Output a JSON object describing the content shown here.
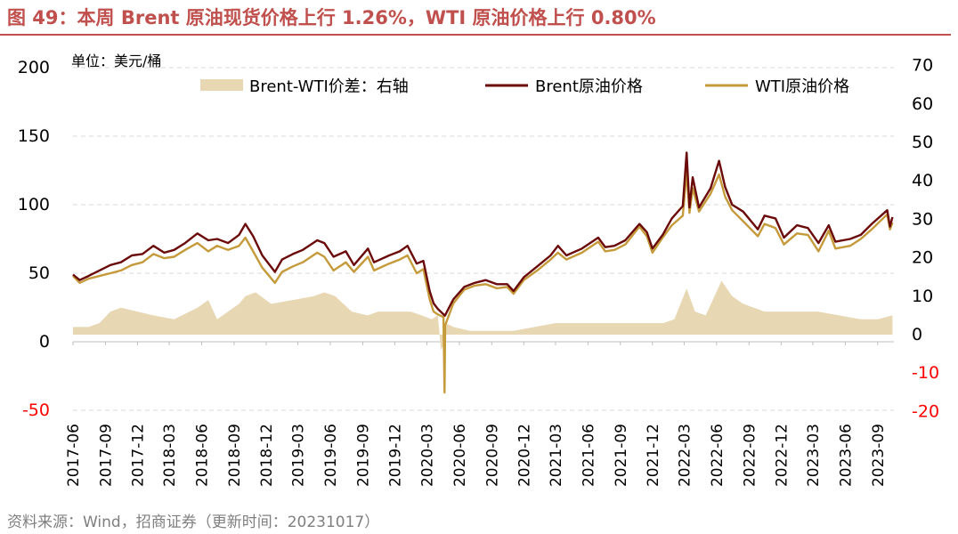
{
  "figure": {
    "title": "图 49：本周 Brent 原油现货价格上行 1.26%，WTI 原油价格上行 0.80%",
    "source": "资料来源：Wind，招商证券（更新时间：20231017）"
  },
  "colors": {
    "title": "#c0504d",
    "brent": "#6b0a0a",
    "wti": "#c49a3b",
    "spread": "#e8d7b3",
    "negative_tick": "#ff0000",
    "axis_text": "#000000",
    "grid": "#d9d9d9"
  },
  "chart_data": {
    "type": "line",
    "unit_label": "单位：美元/桶",
    "x_ticks": [
      "2017-06",
      "2017-09",
      "2017-12",
      "2018-03",
      "2018-06",
      "2018-09",
      "2018-12",
      "2019-03",
      "2019-06",
      "2019-09",
      "2019-12",
      "2020-03",
      "2020-06",
      "2020-09",
      "2020-12",
      "2021-03",
      "2021-06",
      "2021-09",
      "2021-12",
      "2022-03",
      "2022-06",
      "2022-09",
      "2022-12",
      "2023-03",
      "2023-06",
      "2023-09"
    ],
    "y_left": {
      "range": [
        -50,
        200
      ],
      "ticks": [
        -50,
        0,
        50,
        100,
        150,
        200
      ]
    },
    "y_right": {
      "range": [
        -20,
        70
      ],
      "ticks": [
        -20,
        -10,
        0,
        10,
        20,
        30,
        40,
        50,
        60,
        70
      ]
    },
    "grid": true,
    "legend": {
      "position": "top",
      "items": [
        "Brent-WTI价差：右轴",
        "Brent原油价格",
        "WTI原油价格"
      ]
    },
    "series": [
      {
        "name": "Brent原油价格",
        "kind": "line",
        "axis": "left",
        "points": [
          [
            "2017-06-01",
            49
          ],
          [
            "2017-06-20",
            45
          ],
          [
            "2017-07-15",
            48
          ],
          [
            "2017-08-15",
            52
          ],
          [
            "2017-09-15",
            56
          ],
          [
            "2017-10-15",
            58
          ],
          [
            "2017-11-15",
            63
          ],
          [
            "2017-12-15",
            64
          ],
          [
            "2018-01-15",
            70
          ],
          [
            "2018-02-15",
            65
          ],
          [
            "2018-03-15",
            67
          ],
          [
            "2018-04-15",
            72
          ],
          [
            "2018-05-20",
            79
          ],
          [
            "2018-06-20",
            74
          ],
          [
            "2018-07-15",
            75
          ],
          [
            "2018-08-15",
            72
          ],
          [
            "2018-09-15",
            78
          ],
          [
            "2018-10-03",
            86
          ],
          [
            "2018-10-25",
            77
          ],
          [
            "2018-11-20",
            63
          ],
          [
            "2018-12-26",
            51
          ],
          [
            "2019-01-15",
            60
          ],
          [
            "2019-02-15",
            64
          ],
          [
            "2019-03-15",
            67
          ],
          [
            "2019-04-25",
            74
          ],
          [
            "2019-05-15",
            72
          ],
          [
            "2019-06-10",
            62
          ],
          [
            "2019-07-15",
            66
          ],
          [
            "2019-08-07",
            56
          ],
          [
            "2019-09-16",
            68
          ],
          [
            "2019-10-03",
            58
          ],
          [
            "2019-11-15",
            63
          ],
          [
            "2019-12-15",
            66
          ],
          [
            "2020-01-06",
            70
          ],
          [
            "2020-02-01",
            57
          ],
          [
            "2020-02-20",
            59
          ],
          [
            "2020-03-09",
            37
          ],
          [
            "2020-03-20",
            28
          ],
          [
            "2020-04-01",
            24
          ],
          [
            "2020-04-21",
            19
          ],
          [
            "2020-05-15",
            31
          ],
          [
            "2020-06-15",
            40
          ],
          [
            "2020-07-15",
            43
          ],
          [
            "2020-08-15",
            45
          ],
          [
            "2020-09-15",
            42
          ],
          [
            "2020-10-15",
            42
          ],
          [
            "2020-11-02",
            37
          ],
          [
            "2020-12-01",
            47
          ],
          [
            "2021-01-08",
            55
          ],
          [
            "2021-02-15",
            63
          ],
          [
            "2021-03-08",
            70
          ],
          [
            "2021-04-01",
            63
          ],
          [
            "2021-05-15",
            68
          ],
          [
            "2021-06-30",
            76
          ],
          [
            "2021-07-20",
            69
          ],
          [
            "2021-08-15",
            70
          ],
          [
            "2021-09-15",
            74
          ],
          [
            "2021-10-25",
            86
          ],
          [
            "2021-11-15",
            80
          ],
          [
            "2021-12-01",
            68
          ],
          [
            "2021-12-30",
            78
          ],
          [
            "2022-01-25",
            90
          ],
          [
            "2022-02-25",
            99
          ],
          [
            "2022-03-08",
            138
          ],
          [
            "2022-03-16",
            98
          ],
          [
            "2022-03-25",
            120
          ],
          [
            "2022-04-12",
            98
          ],
          [
            "2022-05-15",
            112
          ],
          [
            "2022-06-08",
            132
          ],
          [
            "2022-06-25",
            113
          ],
          [
            "2022-07-15",
            100
          ],
          [
            "2022-08-15",
            95
          ],
          [
            "2022-09-26",
            82
          ],
          [
            "2022-10-15",
            92
          ],
          [
            "2022-11-15",
            90
          ],
          [
            "2022-12-09",
            76
          ],
          [
            "2023-01-15",
            85
          ],
          [
            "2023-02-15",
            83
          ],
          [
            "2023-03-17",
            72
          ],
          [
            "2023-04-15",
            85
          ],
          [
            "2023-05-04",
            73
          ],
          [
            "2023-06-15",
            75
          ],
          [
            "2023-07-15",
            78
          ],
          [
            "2023-08-15",
            86
          ],
          [
            "2023-09-28",
            96
          ],
          [
            "2023-10-06",
            84
          ],
          [
            "2023-10-13",
            91
          ]
        ]
      },
      {
        "name": "WTI原油价格",
        "kind": "line",
        "axis": "left",
        "points": [
          [
            "2017-06-01",
            48
          ],
          [
            "2017-06-20",
            43
          ],
          [
            "2017-07-15",
            46
          ],
          [
            "2017-08-15",
            48
          ],
          [
            "2017-09-15",
            50
          ],
          [
            "2017-10-15",
            52
          ],
          [
            "2017-11-15",
            56
          ],
          [
            "2017-12-15",
            58
          ],
          [
            "2018-01-15",
            64
          ],
          [
            "2018-02-15",
            61
          ],
          [
            "2018-03-15",
            62
          ],
          [
            "2018-04-15",
            67
          ],
          [
            "2018-05-20",
            72
          ],
          [
            "2018-06-20",
            66
          ],
          [
            "2018-07-15",
            70
          ],
          [
            "2018-08-15",
            67
          ],
          [
            "2018-09-15",
            70
          ],
          [
            "2018-10-03",
            76
          ],
          [
            "2018-10-25",
            66
          ],
          [
            "2018-11-20",
            54
          ],
          [
            "2018-12-26",
            43
          ],
          [
            "2019-01-15",
            51
          ],
          [
            "2019-02-15",
            55
          ],
          [
            "2019-03-15",
            58
          ],
          [
            "2019-04-25",
            65
          ],
          [
            "2019-05-15",
            62
          ],
          [
            "2019-06-10",
            52
          ],
          [
            "2019-07-15",
            58
          ],
          [
            "2019-08-07",
            51
          ],
          [
            "2019-09-16",
            62
          ],
          [
            "2019-10-03",
            52
          ],
          [
            "2019-11-15",
            57
          ],
          [
            "2019-12-15",
            60
          ],
          [
            "2020-01-06",
            63
          ],
          [
            "2020-02-01",
            50
          ],
          [
            "2020-02-20",
            53
          ],
          [
            "2020-03-09",
            31
          ],
          [
            "2020-03-20",
            22
          ],
          [
            "2020-04-01",
            20
          ],
          [
            "2020-04-17",
            18
          ],
          [
            "2020-04-20",
            -37
          ],
          [
            "2020-04-22",
            12
          ],
          [
            "2020-05-15",
            28
          ],
          [
            "2020-06-15",
            38
          ],
          [
            "2020-07-15",
            41
          ],
          [
            "2020-08-15",
            42
          ],
          [
            "2020-09-15",
            39
          ],
          [
            "2020-10-15",
            40
          ],
          [
            "2020-11-02",
            35
          ],
          [
            "2020-12-01",
            45
          ],
          [
            "2021-01-08",
            52
          ],
          [
            "2021-02-15",
            60
          ],
          [
            "2021-03-08",
            65
          ],
          [
            "2021-04-01",
            60
          ],
          [
            "2021-05-15",
            65
          ],
          [
            "2021-06-30",
            73
          ],
          [
            "2021-07-20",
            66
          ],
          [
            "2021-08-15",
            67
          ],
          [
            "2021-09-15",
            71
          ],
          [
            "2021-10-25",
            84
          ],
          [
            "2021-11-15",
            77
          ],
          [
            "2021-12-01",
            65
          ],
          [
            "2021-12-30",
            76
          ],
          [
            "2022-01-25",
            85
          ],
          [
            "2022-02-25",
            92
          ],
          [
            "2022-03-08",
            124
          ],
          [
            "2022-03-16",
            94
          ],
          [
            "2022-03-25",
            112
          ],
          [
            "2022-04-12",
            95
          ],
          [
            "2022-05-15",
            108
          ],
          [
            "2022-06-08",
            122
          ],
          [
            "2022-06-25",
            106
          ],
          [
            "2022-07-15",
            96
          ],
          [
            "2022-08-15",
            88
          ],
          [
            "2022-09-26",
            77
          ],
          [
            "2022-10-15",
            86
          ],
          [
            "2022-11-15",
            83
          ],
          [
            "2022-12-09",
            71
          ],
          [
            "2023-01-15",
            79
          ],
          [
            "2023-02-15",
            78
          ],
          [
            "2023-03-17",
            66
          ],
          [
            "2023-04-15",
            81
          ],
          [
            "2023-05-04",
            68
          ],
          [
            "2023-06-15",
            70
          ],
          [
            "2023-07-15",
            75
          ],
          [
            "2023-08-15",
            82
          ],
          [
            "2023-09-28",
            93
          ],
          [
            "2023-10-06",
            82
          ],
          [
            "2023-10-13",
            87
          ]
        ]
      },
      {
        "name": "Brent-WTI价差：右轴",
        "kind": "area",
        "axis": "right",
        "points": [
          [
            "2017-06-01",
            2
          ],
          [
            "2017-07-15",
            2
          ],
          [
            "2017-08-15",
            3
          ],
          [
            "2017-09-15",
            6
          ],
          [
            "2017-10-15",
            7
          ],
          [
            "2017-12-01",
            6
          ],
          [
            "2018-01-15",
            5
          ],
          [
            "2018-03-15",
            4
          ],
          [
            "2018-05-20",
            7
          ],
          [
            "2018-06-20",
            9
          ],
          [
            "2018-07-15",
            4
          ],
          [
            "2018-09-15",
            8
          ],
          [
            "2018-10-03",
            10
          ],
          [
            "2018-11-01",
            11
          ],
          [
            "2018-12-15",
            8
          ],
          [
            "2019-02-15",
            9
          ],
          [
            "2019-04-15",
            10
          ],
          [
            "2019-05-15",
            11
          ],
          [
            "2019-06-15",
            10
          ],
          [
            "2019-08-01",
            6
          ],
          [
            "2019-09-15",
            5
          ],
          [
            "2019-10-15",
            6
          ],
          [
            "2019-11-15",
            6
          ],
          [
            "2019-12-15",
            6
          ],
          [
            "2020-01-15",
            6
          ],
          [
            "2020-02-15",
            5
          ],
          [
            "2020-03-15",
            4
          ],
          [
            "2020-04-01",
            5
          ],
          [
            "2020-04-10",
            -4
          ],
          [
            "2020-04-20",
            -2
          ],
          [
            "2020-04-23",
            3
          ],
          [
            "2020-05-15",
            2
          ],
          [
            "2020-07-01",
            1
          ],
          [
            "2020-09-01",
            1
          ],
          [
            "2020-11-01",
            1
          ],
          [
            "2021-01-01",
            2
          ],
          [
            "2021-03-01",
            3
          ],
          [
            "2021-05-01",
            3
          ],
          [
            "2021-07-01",
            3
          ],
          [
            "2021-09-01",
            3
          ],
          [
            "2021-11-01",
            3
          ],
          [
            "2022-01-01",
            3
          ],
          [
            "2022-02-01",
            4
          ],
          [
            "2022-03-08",
            12
          ],
          [
            "2022-04-01",
            6
          ],
          [
            "2022-05-01",
            5
          ],
          [
            "2022-06-15",
            14
          ],
          [
            "2022-07-15",
            10
          ],
          [
            "2022-08-15",
            8
          ],
          [
            "2022-09-15",
            7
          ],
          [
            "2022-10-15",
            6
          ],
          [
            "2022-11-15",
            6
          ],
          [
            "2023-01-15",
            6
          ],
          [
            "2023-03-15",
            6
          ],
          [
            "2023-05-15",
            5
          ],
          [
            "2023-07-15",
            4
          ],
          [
            "2023-09-01",
            4
          ],
          [
            "2023-10-13",
            5
          ]
        ]
      }
    ]
  }
}
